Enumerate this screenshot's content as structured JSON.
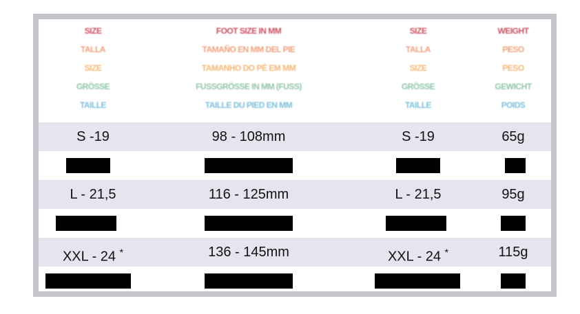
{
  "header": {
    "col1": [
      "SIZE",
      "TALLA",
      "SIZE",
      "GRÖSSE",
      "TAILLE"
    ],
    "col2": [
      "FOOT SIZE IN MM",
      "TAMAÑO EN MM DEL PIE",
      "TAMANHO DO PÉ EM MM",
      "FUSSGRÖSSE IN MM (FUSS)",
      "TAILLE DU PIED EN MM"
    ],
    "col3": [
      "SIZE",
      "TALLA",
      "SIZE",
      "GRÖSSE",
      "TAILLE"
    ],
    "col4": [
      "WEIGHT",
      "PESO",
      "PESO",
      "GEWICHT",
      "POIDS"
    ],
    "colors": [
      "#c8505f",
      "#f0a07a",
      "#f4b774",
      "#8fc4a8",
      "#7cc0dc"
    ]
  },
  "rows": [
    {
      "size": "S -19",
      "foot": "98 - 108mm",
      "size2": "S -19",
      "weight": "65g"
    },
    {
      "redacted": true
    },
    {
      "size": "L - 21,5",
      "foot": "116 - 125mm",
      "size2": "L - 21,5",
      "weight": "95g"
    },
    {
      "redacted": true
    },
    {
      "size": "XXL - 24",
      "mark": "*",
      "foot": "136 - 145mm",
      "size2": "XXL - 24",
      "mark2": "*",
      "weight": "115g"
    },
    {
      "redacted": true
    }
  ]
}
